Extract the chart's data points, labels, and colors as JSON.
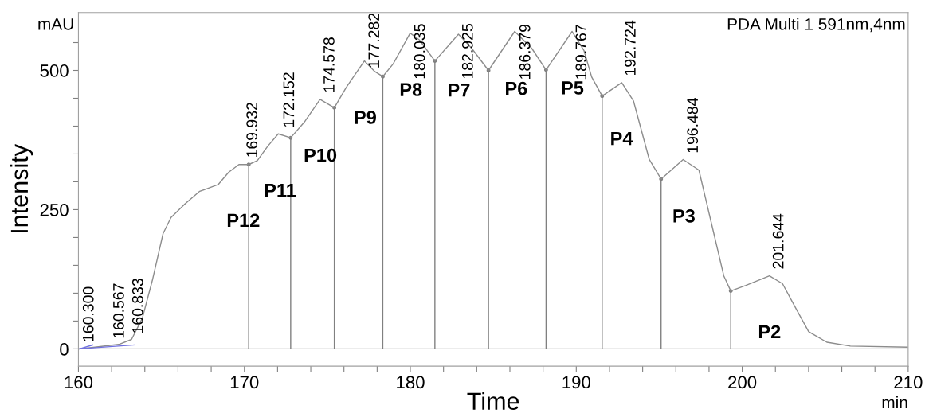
{
  "chart_data": {
    "type": "line",
    "xlabel": "Time",
    "ylabel": "Intensity",
    "xlim": [
      160,
      210
    ],
    "ylim": [
      -31,
      604
    ],
    "xticks": [
      160,
      {
        "value": 162,
        "label": null
      },
      {
        "value": 164,
        "label": null
      },
      {
        "value": 166,
        "label": null
      },
      {
        "value": 168,
        "label": null
      },
      170,
      {
        "value": 172,
        "label": null
      },
      {
        "value": 174,
        "label": null
      },
      {
        "value": 176,
        "label": null
      },
      {
        "value": 178,
        "label": null
      },
      180,
      {
        "value": 182,
        "label": null
      },
      {
        "value": 184,
        "label": null
      },
      {
        "value": 186,
        "label": null
      },
      {
        "value": 188,
        "label": null
      },
      190,
      {
        "value": 192,
        "label": null
      },
      {
        "value": 194,
        "label": null
      },
      {
        "value": 196,
        "label": null
      },
      {
        "value": 198,
        "label": null
      },
      200,
      {
        "value": 202,
        "label": null
      },
      {
        "value": 204,
        "label": null
      },
      {
        "value": 206,
        "label": null
      },
      {
        "value": 208,
        "label": null
      },
      210
    ],
    "yticks": [
      0,
      {
        "value": 50,
        "label": null
      },
      {
        "value": 100,
        "label": null
      },
      {
        "value": 150,
        "label": null
      },
      {
        "value": 200,
        "label": null
      },
      250,
      {
        "value": 300,
        "label": null
      },
      {
        "value": 350,
        "label": null
      },
      {
        "value": 400,
        "label": null
      },
      {
        "value": 450,
        "label": null
      },
      500,
      {
        "value": 550,
        "label": null
      }
    ],
    "grid": false,
    "legend": false,
    "marker": "none",
    "line_style": "solid",
    "series": [
      {
        "color": "#8c8c8c",
        "x": [
          160.07,
          162.43,
          163.2,
          163.85,
          164.48,
          165.1,
          165.58,
          166.37,
          167.31,
          167.78,
          168.42,
          169.05,
          169.67,
          170.26,
          170.78,
          171.41,
          172.04,
          172.79,
          173.61,
          174.56,
          175.42,
          176.13,
          177.23,
          177.86,
          178.34,
          178.97,
          179.99,
          180.54,
          181.48,
          182.9,
          183.69,
          184.71,
          186.29,
          187.31,
          188.18,
          189.75,
          190.46,
          190.93,
          191.56,
          192.74,
          193.45,
          194.4,
          195.11,
          196.44,
          197.39,
          198.18,
          198.89,
          199.31,
          200.22,
          201.64,
          202.43,
          203.21,
          204.0,
          205.1,
          206.52,
          209.95
        ],
        "values": [
          0,
          8,
          17,
          55,
          126,
          207,
          236,
          259,
          283,
          288,
          295,
          317,
          331,
          331,
          338,
          364,
          386,
          379,
          407,
          448,
          433,
          469,
          517,
          498,
          489,
          512,
          567,
          555,
          517,
          565,
          540,
          500,
          570,
          540,
          501,
          570,
          536,
          488,
          454,
          478,
          445,
          340,
          305,
          340,
          321,
          221,
          131,
          104,
          114,
          131,
          117,
          74,
          31,
          12,
          5,
          3
        ]
      },
      {
        "type": "lollipop",
        "color": "#808080",
        "x": [
          170.26,
          172.79,
          175.42,
          178.34,
          181.48,
          184.71,
          188.18,
          191.56,
          195.11,
          199.31
        ],
        "values": [
          331,
          379,
          433,
          489,
          517,
          500,
          501,
          454,
          305,
          104
        ]
      },
      {
        "type": "line",
        "color": "#6f6fe0",
        "x": [
          160.07,
          160.86
        ],
        "values": [
          0,
          7
        ]
      },
      {
        "type": "line",
        "color": "#6f6fe0",
        "x": [
          160.07,
          163.38
        ],
        "values": [
          0,
          7
        ]
      }
    ],
    "ref_lines": [
      {
        "axis": "y",
        "value": 0,
        "color": "#b4b4b4"
      }
    ],
    "annotations": [
      {
        "text": "160.300",
        "x": 160.07,
        "y": 0
      },
      {
        "text": "160.567",
        "x": 161.9,
        "y": 6
      },
      {
        "text": "160.833",
        "x": 163.05,
        "y": 15
      },
      {
        "text": "169.932",
        "x": 169.932,
        "y": 331
      },
      {
        "text": "172.152",
        "x": 172.152,
        "y": 385
      },
      {
        "text": "174.578",
        "x": 174.578,
        "y": 448
      },
      {
        "text": "177.282",
        "x": 177.282,
        "y": 516
      },
      {
        "text": "180.035",
        "x": 180.035,
        "y": 566
      },
      {
        "text": "182.925",
        "x": 182.925,
        "y": 565
      },
      {
        "text": "186.379",
        "x": 186.379,
        "y": 568
      },
      {
        "text": "189.767",
        "x": 189.767,
        "y": 569
      },
      {
        "text": "192.724",
        "x": 192.724,
        "y": 478
      },
      {
        "text": "196.484",
        "x": 196.484,
        "y": 339
      },
      {
        "text": "201.644",
        "x": 201.644,
        "y": 131
      },
      {
        "text": "P12",
        "x": 169.932,
        "y": 331
      },
      {
        "text": "P11",
        "x": 172.152,
        "y": 385
      },
      {
        "text": "P10",
        "x": 174.578,
        "y": 448
      },
      {
        "text": "P9",
        "x": 177.282,
        "y": 516
      },
      {
        "text": "P8",
        "x": 180.035,
        "y": 566
      },
      {
        "text": "P7",
        "x": 182.925,
        "y": 565
      },
      {
        "text": "P6",
        "x": 186.379,
        "y": 568
      },
      {
        "text": "P5",
        "x": 189.767,
        "y": 569
      },
      {
        "text": "P4",
        "x": 192.724,
        "y": 478
      },
      {
        "text": "P3",
        "x": 196.484,
        "y": 339
      },
      {
        "text": "P2",
        "x": 201.644,
        "y": 131
      },
      "PDA Multi 1 591nm,4nm",
      "mAU",
      "min"
    ]
  }
}
